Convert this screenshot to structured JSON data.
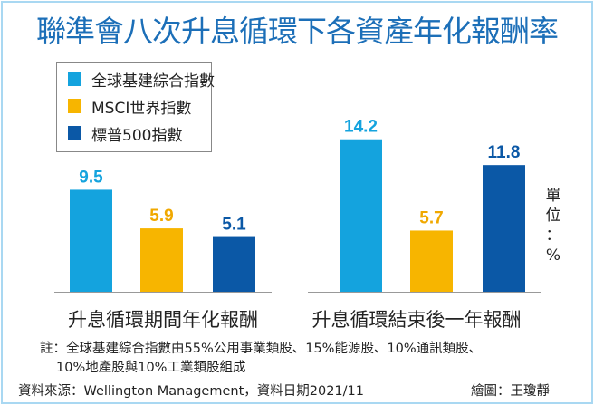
{
  "title": "聯準會八次升息循環下各資產年化報酬率",
  "unit_label": [
    "單",
    "位",
    "：",
    "%"
  ],
  "footnote_line1": "註：全球基建綜合指數由55%公用事業類股、15%能源股、10%通訊類股、",
  "footnote_line2": "10%地產股與10%工業類股組成",
  "source": "資料來源：Wellington Management，資料日期2021/11",
  "credit": "繪圖：王瓊靜",
  "chart_data": {
    "type": "bar",
    "title": "聯準會八次升息循環下各資產年化報酬率",
    "categories": [
      "升息循環期間年化報酬",
      "升息循環結束後一年報酬"
    ],
    "series": [
      {
        "name": "全球基建綜合指數",
        "color": "#14a3de",
        "values": [
          9.5,
          14.2
        ]
      },
      {
        "name": "MSCI世界指數",
        "color": "#f7b500",
        "values": [
          5.9,
          5.7
        ]
      },
      {
        "name": "標普500指數",
        "color": "#0b58a6",
        "values": [
          5.1,
          11.8
        ]
      }
    ],
    "ylabel": "單位：%",
    "ylim": [
      0,
      16
    ],
    "grid": false,
    "legend": "top-left",
    "data_labels": true
  }
}
